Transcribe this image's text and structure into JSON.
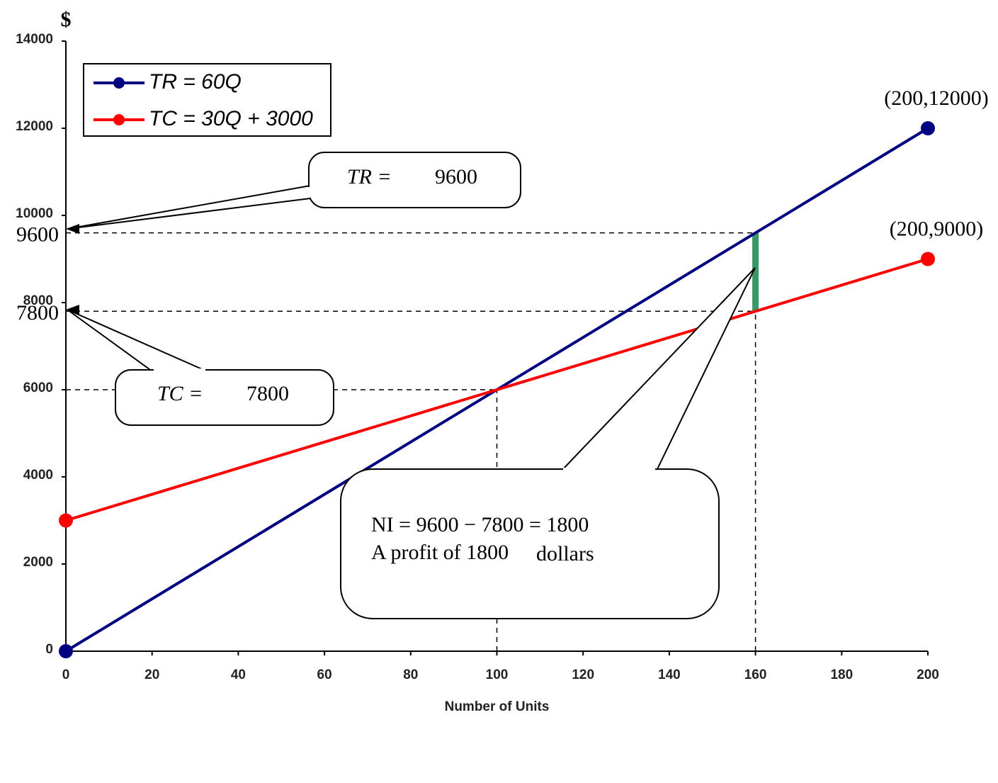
{
  "chart_data": {
    "type": "line",
    "y_label": "$",
    "x_label": "Number of Units",
    "x": [
      0,
      200
    ],
    "series": [
      {
        "name": "TR = 60Q",
        "color": "#000080",
        "values": [
          0,
          12000
        ]
      },
      {
        "name": "TC = 30Q + 3000",
        "color": "#ff0000",
        "values": [
          3000,
          9000
        ]
      }
    ],
    "xlim": [
      0,
      200
    ],
    "xticks": [
      0,
      20,
      40,
      60,
      80,
      100,
      120,
      140,
      160,
      180,
      200
    ],
    "ylim": [
      0,
      14000
    ],
    "yticks": [
      0,
      2000,
      4000,
      6000,
      8000,
      10000,
      12000,
      14000
    ],
    "hlines": [
      9600,
      7800,
      6000
    ],
    "vlines": [
      100,
      160
    ],
    "profit_color": "#339966",
    "point_labels": [
      "(200,12000)",
      "(200,9000)"
    ],
    "tr_callout": "TR =",
    "tc_callout": "TC =",
    "ni_callout": [
      "NI = 9600 − 7800 = 1800",
      "A profit of 1800",
      "dollars"
    ]
  }
}
